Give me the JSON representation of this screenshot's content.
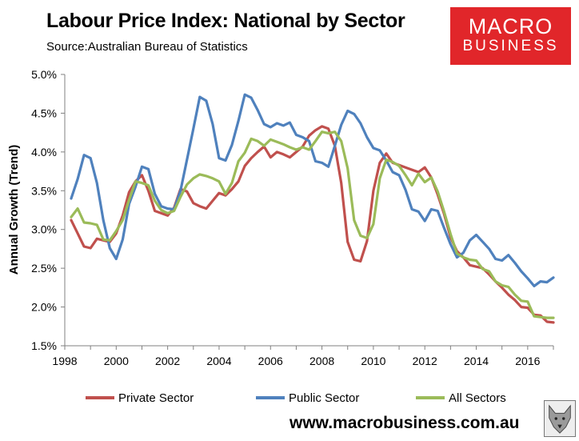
{
  "header": {
    "title": "Labour Price Index: National by Sector",
    "source": "Source:Australian Bureau of Statistics"
  },
  "logo": {
    "line1": "MACRO",
    "line2": "BUSINESS",
    "color": "#e1262a"
  },
  "footer": {
    "url": "www.macrobusiness.com.au"
  },
  "chart_data": {
    "type": "line",
    "title": "Labour Price Index: National by Sector",
    "xlabel": "",
    "ylabel": "Annual Growth (Trend)",
    "xlim": [
      1998,
      2017
    ],
    "ylim": [
      1.5,
      5.0
    ],
    "x_ticks": [
      1998,
      2000,
      2002,
      2004,
      2006,
      2008,
      2010,
      2012,
      2014,
      2016
    ],
    "y_ticks": [
      1.5,
      2.0,
      2.5,
      3.0,
      3.5,
      4.0,
      4.5,
      5.0
    ],
    "y_tick_labels": [
      "1.5%",
      "2.0%",
      "2.5%",
      "3.0%",
      "3.5%",
      "4.0%",
      "4.5%",
      "5.0%"
    ],
    "grid": false,
    "legend_position": "bottom",
    "x": [
      1998.25,
      1998.5,
      1998.75,
      1999.0,
      1999.25,
      1999.5,
      1999.75,
      2000.0,
      2000.25,
      2000.5,
      2000.75,
      2001.0,
      2001.25,
      2001.5,
      2001.75,
      2002.0,
      2002.25,
      2002.5,
      2002.75,
      2003.0,
      2003.25,
      2003.5,
      2003.75,
      2004.0,
      2004.25,
      2004.5,
      2004.75,
      2005.0,
      2005.25,
      2005.5,
      2005.75,
      2006.0,
      2006.25,
      2006.5,
      2006.75,
      2007.0,
      2007.25,
      2007.5,
      2007.75,
      2008.0,
      2008.25,
      2008.5,
      2008.75,
      2009.0,
      2009.25,
      2009.5,
      2009.75,
      2010.0,
      2010.25,
      2010.5,
      2010.75,
      2011.0,
      2011.25,
      2011.5,
      2011.75,
      2012.0,
      2012.25,
      2012.5,
      2012.75,
      2013.0,
      2013.25,
      2013.5,
      2013.75,
      2014.0,
      2014.25,
      2014.5,
      2014.75,
      2015.0,
      2015.25,
      2015.5,
      2015.75,
      2016.0,
      2016.25,
      2016.5,
      2016.75,
      2017.0
    ],
    "series": [
      {
        "name": "Private Sector",
        "color": "#c0504d",
        "values": [
          3.12,
          2.95,
          2.78,
          2.76,
          2.88,
          2.86,
          2.84,
          2.95,
          3.18,
          3.48,
          3.62,
          3.7,
          3.5,
          3.24,
          3.21,
          3.18,
          3.28,
          3.52,
          3.49,
          3.34,
          3.3,
          3.27,
          3.37,
          3.47,
          3.44,
          3.52,
          3.62,
          3.82,
          3.92,
          4.0,
          4.07,
          3.93,
          4.0,
          3.97,
          3.93,
          4.0,
          4.07,
          4.21,
          4.28,
          4.33,
          4.3,
          4.08,
          3.6,
          2.84,
          2.61,
          2.59,
          2.85,
          3.5,
          3.86,
          3.98,
          3.86,
          3.83,
          3.8,
          3.77,
          3.74,
          3.8,
          3.67,
          3.45,
          3.2,
          2.9,
          2.72,
          2.64,
          2.54,
          2.52,
          2.5,
          2.42,
          2.33,
          2.25,
          2.16,
          2.09,
          2.0,
          1.99,
          1.9,
          1.89,
          1.81,
          1.8
        ]
      },
      {
        "name": "Public Sector",
        "color": "#4f81bd",
        "values": [
          3.4,
          3.65,
          3.96,
          3.92,
          3.6,
          3.12,
          2.76,
          2.62,
          2.87,
          3.33,
          3.55,
          3.81,
          3.78,
          3.46,
          3.3,
          3.27,
          3.26,
          3.5,
          3.9,
          4.3,
          4.71,
          4.66,
          4.36,
          3.92,
          3.89,
          4.09,
          4.4,
          4.74,
          4.7,
          4.54,
          4.36,
          4.32,
          4.37,
          4.34,
          4.38,
          4.22,
          4.19,
          4.14,
          3.88,
          3.86,
          3.81,
          4.08,
          4.35,
          4.53,
          4.49,
          4.37,
          4.19,
          4.05,
          4.02,
          3.89,
          3.74,
          3.7,
          3.51,
          3.26,
          3.23,
          3.11,
          3.26,
          3.24,
          3.02,
          2.81,
          2.64,
          2.7,
          2.86,
          2.93,
          2.84,
          2.75,
          2.62,
          2.6,
          2.67,
          2.57,
          2.46,
          2.37,
          2.27,
          2.33,
          2.32,
          2.38
        ]
      },
      {
        "name": "All Sectors",
        "color": "#9bbb59",
        "values": [
          3.16,
          3.27,
          3.09,
          3.08,
          3.06,
          2.87,
          2.86,
          2.98,
          3.12,
          3.38,
          3.62,
          3.6,
          3.57,
          3.37,
          3.25,
          3.21,
          3.24,
          3.42,
          3.58,
          3.66,
          3.71,
          3.69,
          3.66,
          3.62,
          3.46,
          3.6,
          3.88,
          3.99,
          4.17,
          4.14,
          4.08,
          4.16,
          4.13,
          4.1,
          4.06,
          4.03,
          4.06,
          4.03,
          4.14,
          4.26,
          4.24,
          4.26,
          4.14,
          3.79,
          3.12,
          2.92,
          2.89,
          3.07,
          3.66,
          3.9,
          3.87,
          3.82,
          3.7,
          3.57,
          3.72,
          3.61,
          3.67,
          3.49,
          3.23,
          2.94,
          2.69,
          2.64,
          2.61,
          2.6,
          2.49,
          2.46,
          2.33,
          2.28,
          2.26,
          2.16,
          2.08,
          2.07,
          1.88,
          1.87,
          1.86,
          1.86
        ]
      }
    ]
  }
}
